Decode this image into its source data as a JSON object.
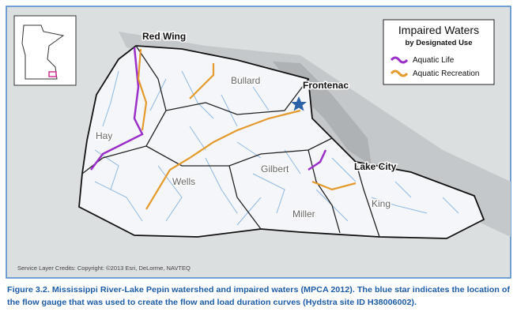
{
  "map": {
    "cities": [
      "Red Wing",
      "Frontenac",
      "Lake City"
    ],
    "watersheds": [
      "Bullard",
      "Hay",
      "Gilbert",
      "Wells",
      "Miller",
      "King"
    ],
    "credits": "Service Layer Credits: Copyright: ©2013 Esri, DeLorme, NAVTEQ"
  },
  "legend": {
    "title": "Impaired Waters",
    "subtitle": "by Designated Use",
    "items": [
      {
        "label": "Aquatic Life"
      },
      {
        "label": "Aquatic Recreation"
      }
    ]
  },
  "caption": [
    "Figure 3.2. Mississippi River-Lake Pepin watershed and impaired waters (MPCA 2012). The blue star indicates the location of",
    "the flow gauge that was used to create the flow and load duration curves (Hydstra site ID H38006002)."
  ]
}
